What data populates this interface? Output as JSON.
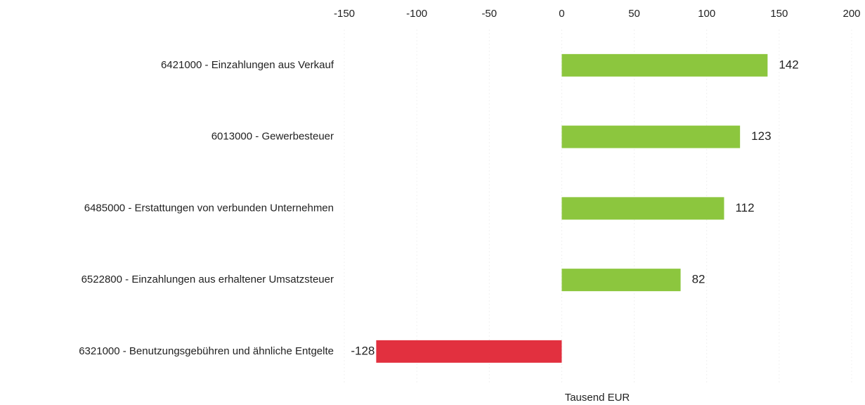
{
  "chart_data": {
    "type": "bar",
    "orientation": "horizontal",
    "categories": [
      "6421000 - Einzahlungen aus Verkauf",
      "6013000 - Gewerbesteuer",
      "6485000 - Erstattungen von verbunden Unternehmen",
      "6522800 - Einzahlungen aus erhaltener Umsatzsteuer",
      "6321000 - Benutzungsgebühren und ähnliche Entgelte"
    ],
    "values": [
      142,
      123,
      112,
      82,
      -128
    ],
    "colors": [
      "#8cc63e",
      "#8cc63e",
      "#8cc63e",
      "#8cc63e",
      "#e2303f"
    ],
    "xlabel": "Tausend EUR",
    "xlim": [
      -150,
      200
    ],
    "xticks": [
      -150,
      -100,
      -50,
      0,
      50,
      100,
      150,
      200
    ],
    "grid": true,
    "xaxis_position": "top"
  }
}
